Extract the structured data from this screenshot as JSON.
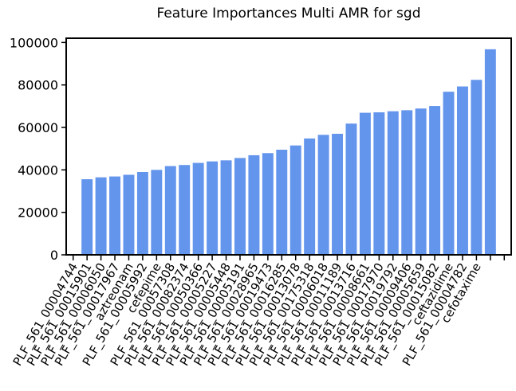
{
  "chart_data": {
    "type": "bar",
    "title": "Feature Importances Multi AMR for sgd",
    "xlabel": "",
    "ylabel": "",
    "ylim": [
      0,
      102000
    ],
    "yticks": [
      0,
      20000,
      40000,
      60000,
      80000,
      100000
    ],
    "ytick_labels": [
      "0",
      "20000",
      "40000",
      "60000",
      "80000",
      "100000"
    ],
    "bar_color": "#6495ED",
    "categories": [
      "PLF_561_00004744",
      "PLF_561_00015901",
      "PLF_561_00006050",
      "PLF_561_00017967",
      "aztreonam",
      "PLF_561_00005992",
      "cefepime",
      "PLF_561_00057308",
      "PLF_561_00082374",
      "PLF_561_00050366",
      "PLF_561_00005227",
      "PLF_561_00005448",
      "PLF_561_00005191",
      "PLF_561_00028965",
      "PLF_561_00019473",
      "PLF_561_00016285",
      "PLF_561_00013078",
      "PLF_561_00175318",
      "PLF_561_00006018",
      "PLF_561_00011189",
      "PLF_561_00013716",
      "PLF_561_00008661",
      "PLF_561_00017970",
      "PLF_561_00019792",
      "PLF_561_00009406",
      "PLF_561_00005659",
      "PLF_561_00015082",
      "ceftazidime",
      "PLF_561_00004782",
      "cefotaxime"
    ],
    "values": [
      35600,
      36500,
      36900,
      37700,
      39000,
      40000,
      41800,
      42300,
      43300,
      44000,
      44500,
      45600,
      46900,
      47900,
      49500,
      51500,
      54800,
      56500,
      57000,
      61800,
      66900,
      67100,
      67600,
      68100,
      68900,
      70100,
      76800,
      79300,
      82400,
      96800
    ]
  }
}
